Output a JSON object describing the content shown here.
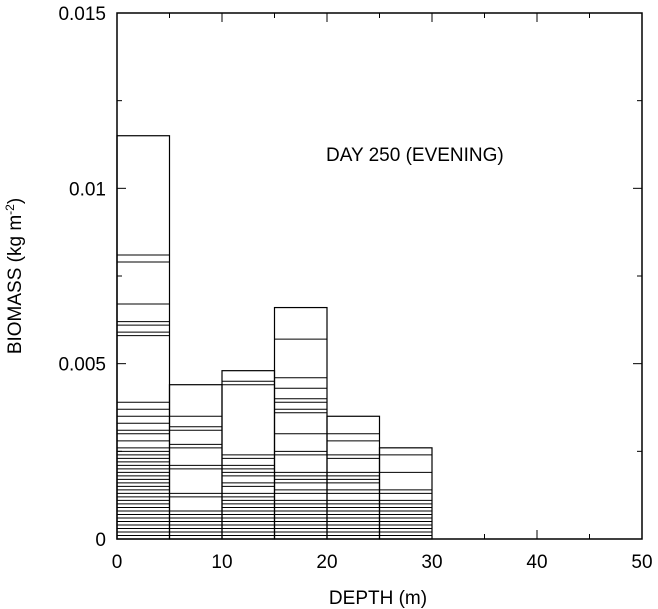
{
  "chart_data": {
    "type": "bar",
    "annotation": "DAY 250 (EVENING)",
    "xlabel": "DEPTH (m)",
    "ylabel": {
      "main": "BIOMASS (kg m",
      "sup": "-2",
      "end": ")"
    },
    "xlim": [
      0,
      50
    ],
    "ylim": [
      0,
      0.015
    ],
    "xticks": [
      0,
      10,
      20,
      30,
      40,
      50
    ],
    "xtick_labels": [
      "0",
      "10",
      "20",
      "30",
      "40",
      "50"
    ],
    "yticks": [
      0,
      0.005,
      0.01,
      0.015
    ],
    "ytick_labels": [
      "0",
      "0.005",
      "0.01",
      "0.015"
    ],
    "grid": false,
    "bin_width": 5,
    "bins": [
      {
        "x0": 0,
        "x1": 5,
        "total": 0.0115,
        "stack_lines": [
          0.0081,
          0.0079,
          0.0067,
          0.0062,
          0.0061,
          0.0059,
          0.0058,
          0.0039,
          0.0037,
          0.0035,
          0.0033,
          0.0031,
          0.003,
          0.0028,
          0.0026,
          0.0025,
          0.0024,
          0.0023,
          0.0022,
          0.0021,
          0.002,
          0.0019,
          0.0018,
          0.0017,
          0.0016,
          0.0015,
          0.0014,
          0.0013,
          0.0012,
          0.0011,
          0.001,
          0.0009,
          0.0008,
          0.0007,
          0.0006,
          0.0005,
          0.0004,
          0.0003,
          0.0002,
          0.0001
        ]
      },
      {
        "x0": 5,
        "x1": 10,
        "total": 0.0044,
        "stack_lines": [
          0.0035,
          0.0032,
          0.0031,
          0.0027,
          0.0026,
          0.0021,
          0.002,
          0.0013,
          0.0012,
          0.0008,
          0.0007,
          0.0006,
          0.0005,
          0.0004,
          0.0003,
          0.0002,
          0.0001
        ]
      },
      {
        "x0": 10,
        "x1": 15,
        "total": 0.0048,
        "stack_lines": [
          0.0045,
          0.0044,
          0.0024,
          0.0023,
          0.0021,
          0.002,
          0.0019,
          0.0018,
          0.0016,
          0.0015,
          0.0013,
          0.0012,
          0.0011,
          0.001,
          0.0009,
          0.0008,
          0.0007,
          0.0006,
          0.0005,
          0.0004,
          0.0003,
          0.0002,
          0.0001
        ]
      },
      {
        "x0": 15,
        "x1": 20,
        "total": 0.0066,
        "stack_lines": [
          0.0057,
          0.0046,
          0.0043,
          0.004,
          0.0039,
          0.0037,
          0.0036,
          0.003,
          0.0025,
          0.0024,
          0.0019,
          0.0018,
          0.0017,
          0.0016,
          0.0014,
          0.0013,
          0.0011,
          0.001,
          0.0009,
          0.0008,
          0.0007,
          0.0006,
          0.0005,
          0.0004,
          0.0003,
          0.0002,
          0.0001
        ]
      },
      {
        "x0": 20,
        "x1": 25,
        "total": 0.0035,
        "stack_lines": [
          0.003,
          0.0028,
          0.0024,
          0.0023,
          0.0019,
          0.0018,
          0.0017,
          0.0016,
          0.0014,
          0.0013,
          0.0011,
          0.001,
          0.0009,
          0.0008,
          0.0007,
          0.0006,
          0.0005,
          0.0004,
          0.0003,
          0.0002,
          0.0001
        ]
      },
      {
        "x0": 25,
        "x1": 30,
        "total": 0.0026,
        "stack_lines": [
          0.0024,
          0.0019,
          0.0014,
          0.0013,
          0.0011,
          0.001,
          0.0009,
          0.0008,
          0.0007,
          0.0006,
          0.0005,
          0.0004,
          0.0003,
          0.0002,
          0.0001
        ]
      }
    ]
  }
}
